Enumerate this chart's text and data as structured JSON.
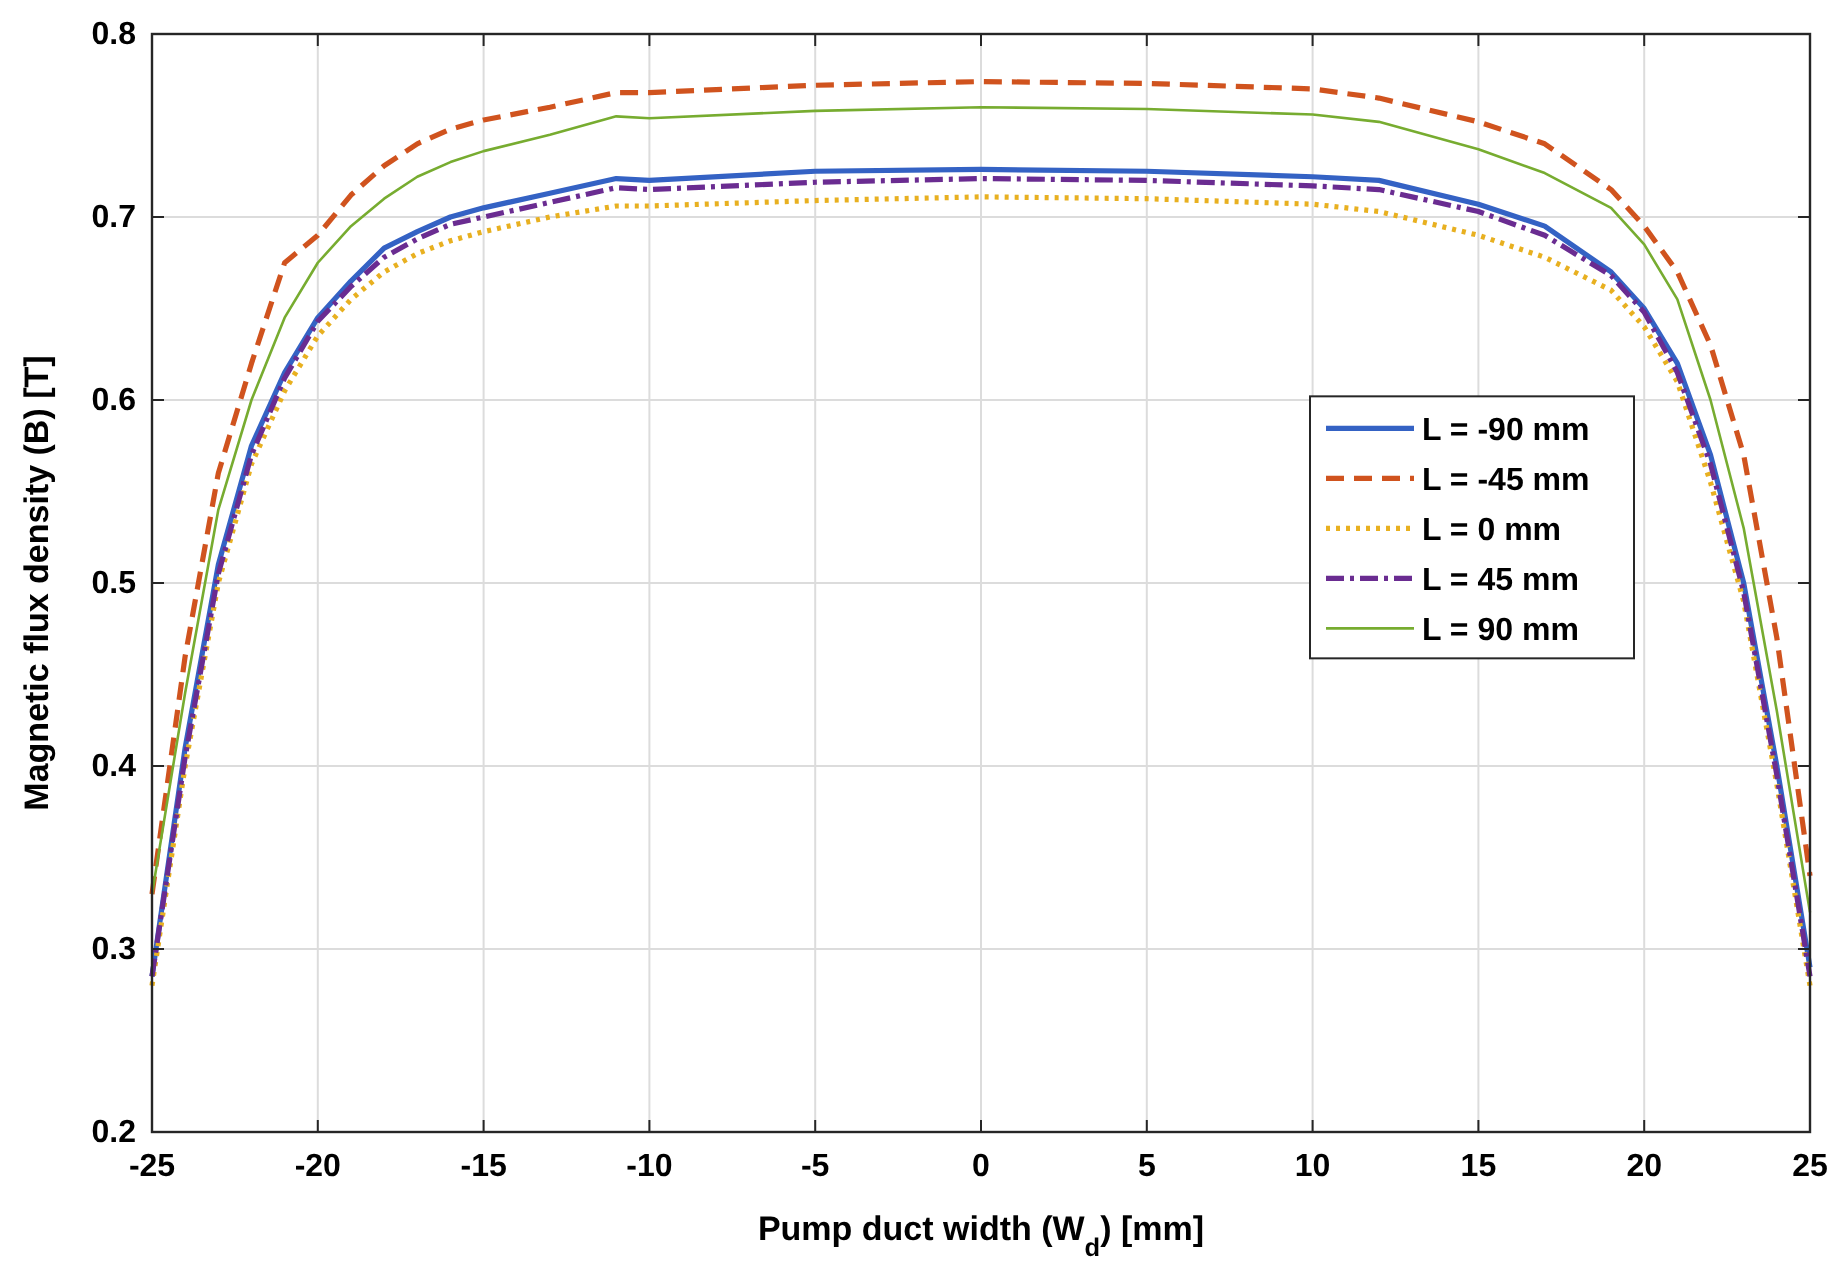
{
  "chart_data": {
    "type": "line",
    "xlabel": "Pump duct width (W$_{d}$) [mm]",
    "ylabel": "Magnetic flux density (B) [T]",
    "x": [
      -25,
      -24,
      -23,
      -22,
      -21,
      -20,
      -19,
      -18,
      -17,
      -16,
      -15,
      -13,
      -11,
      -10,
      -5,
      0,
      5,
      10,
      12,
      15,
      17,
      19,
      20,
      21,
      22,
      23,
      24,
      25
    ],
    "series": [
      {
        "name": "L = -90 mm",
        "color": "#3462c4",
        "line_style": "solid",
        "values": [
          0.285,
          0.41,
          0.51,
          0.575,
          0.615,
          0.645,
          0.665,
          0.683,
          0.692,
          0.7,
          0.705,
          0.713,
          0.721,
          0.72,
          0.725,
          0.726,
          0.725,
          0.722,
          0.72,
          0.707,
          0.695,
          0.67,
          0.65,
          0.62,
          0.57,
          0.5,
          0.4,
          0.29
        ]
      },
      {
        "name": "L = -45 mm",
        "color": "#d0531e",
        "line_style": "dashed",
        "values": [
          0.33,
          0.46,
          0.56,
          0.62,
          0.675,
          0.69,
          0.712,
          0.728,
          0.74,
          0.748,
          0.753,
          0.76,
          0.768,
          0.768,
          0.772,
          0.774,
          0.773,
          0.77,
          0.765,
          0.752,
          0.74,
          0.715,
          0.695,
          0.67,
          0.63,
          0.57,
          0.47,
          0.34
        ]
      },
      {
        "name": "L = 0 mm",
        "color": "#e8b020",
        "line_style": "dotted",
        "values": [
          0.28,
          0.4,
          0.5,
          0.565,
          0.605,
          0.635,
          0.655,
          0.67,
          0.68,
          0.687,
          0.692,
          0.7,
          0.706,
          0.706,
          0.709,
          0.711,
          0.71,
          0.707,
          0.703,
          0.69,
          0.678,
          0.66,
          0.64,
          0.61,
          0.555,
          0.49,
          0.39,
          0.28
        ]
      },
      {
        "name": "L = 45 mm",
        "color": "#6a2c91",
        "line_style": "dashdot",
        "values": [
          0.285,
          0.405,
          0.505,
          0.57,
          0.612,
          0.643,
          0.662,
          0.678,
          0.688,
          0.696,
          0.7,
          0.708,
          0.716,
          0.715,
          0.719,
          0.721,
          0.72,
          0.717,
          0.715,
          0.703,
          0.69,
          0.668,
          0.648,
          0.615,
          0.565,
          0.495,
          0.395,
          0.285
        ]
      },
      {
        "name": "L = 90 mm",
        "color": "#77ac30",
        "line_style": "solid",
        "values": [
          0.33,
          0.44,
          0.54,
          0.6,
          0.645,
          0.675,
          0.695,
          0.71,
          0.722,
          0.73,
          0.736,
          0.745,
          0.755,
          0.754,
          0.758,
          0.76,
          0.759,
          0.756,
          0.752,
          0.737,
          0.724,
          0.705,
          0.685,
          0.655,
          0.6,
          0.53,
          0.43,
          0.32
        ]
      }
    ],
    "xlim": [
      -25,
      25
    ],
    "xticks": [
      -25,
      -20,
      -15,
      -10,
      -5,
      0,
      5,
      10,
      15,
      20,
      25
    ],
    "ylim": [
      0.2,
      0.8
    ],
    "yticks": [
      0.2,
      0.3,
      0.4,
      0.5,
      0.6,
      0.7,
      0.8
    ],
    "grid": true,
    "legend": "right"
  }
}
